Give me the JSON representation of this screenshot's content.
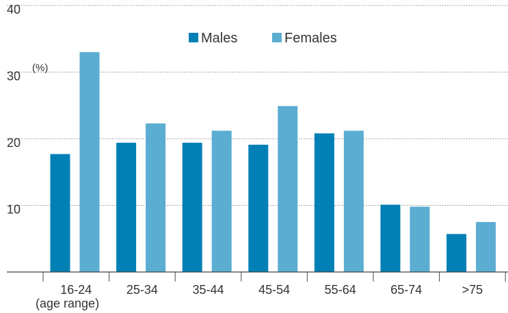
{
  "chart_data": {
    "type": "bar",
    "title": "",
    "ylabel": "(%)",
    "xlabel": "(age range)",
    "ylim": [
      0,
      40
    ],
    "yticks": [
      10,
      20,
      30,
      40
    ],
    "grid": "dotted-horizontal",
    "legend": "top-center",
    "categories": [
      "16-24",
      "25-34",
      "35-44",
      "45-54",
      "55-64",
      "65-74",
      ">75"
    ],
    "series": [
      {
        "name": "Males",
        "color": "#0080b4",
        "values": [
          17.7,
          19.4,
          19.4,
          19.1,
          20.8,
          10.1,
          5.7
        ]
      },
      {
        "name": "Females",
        "color": "#5badd2",
        "values": [
          33.0,
          22.3,
          21.2,
          24.9,
          21.2,
          9.8,
          7.5
        ]
      }
    ]
  }
}
